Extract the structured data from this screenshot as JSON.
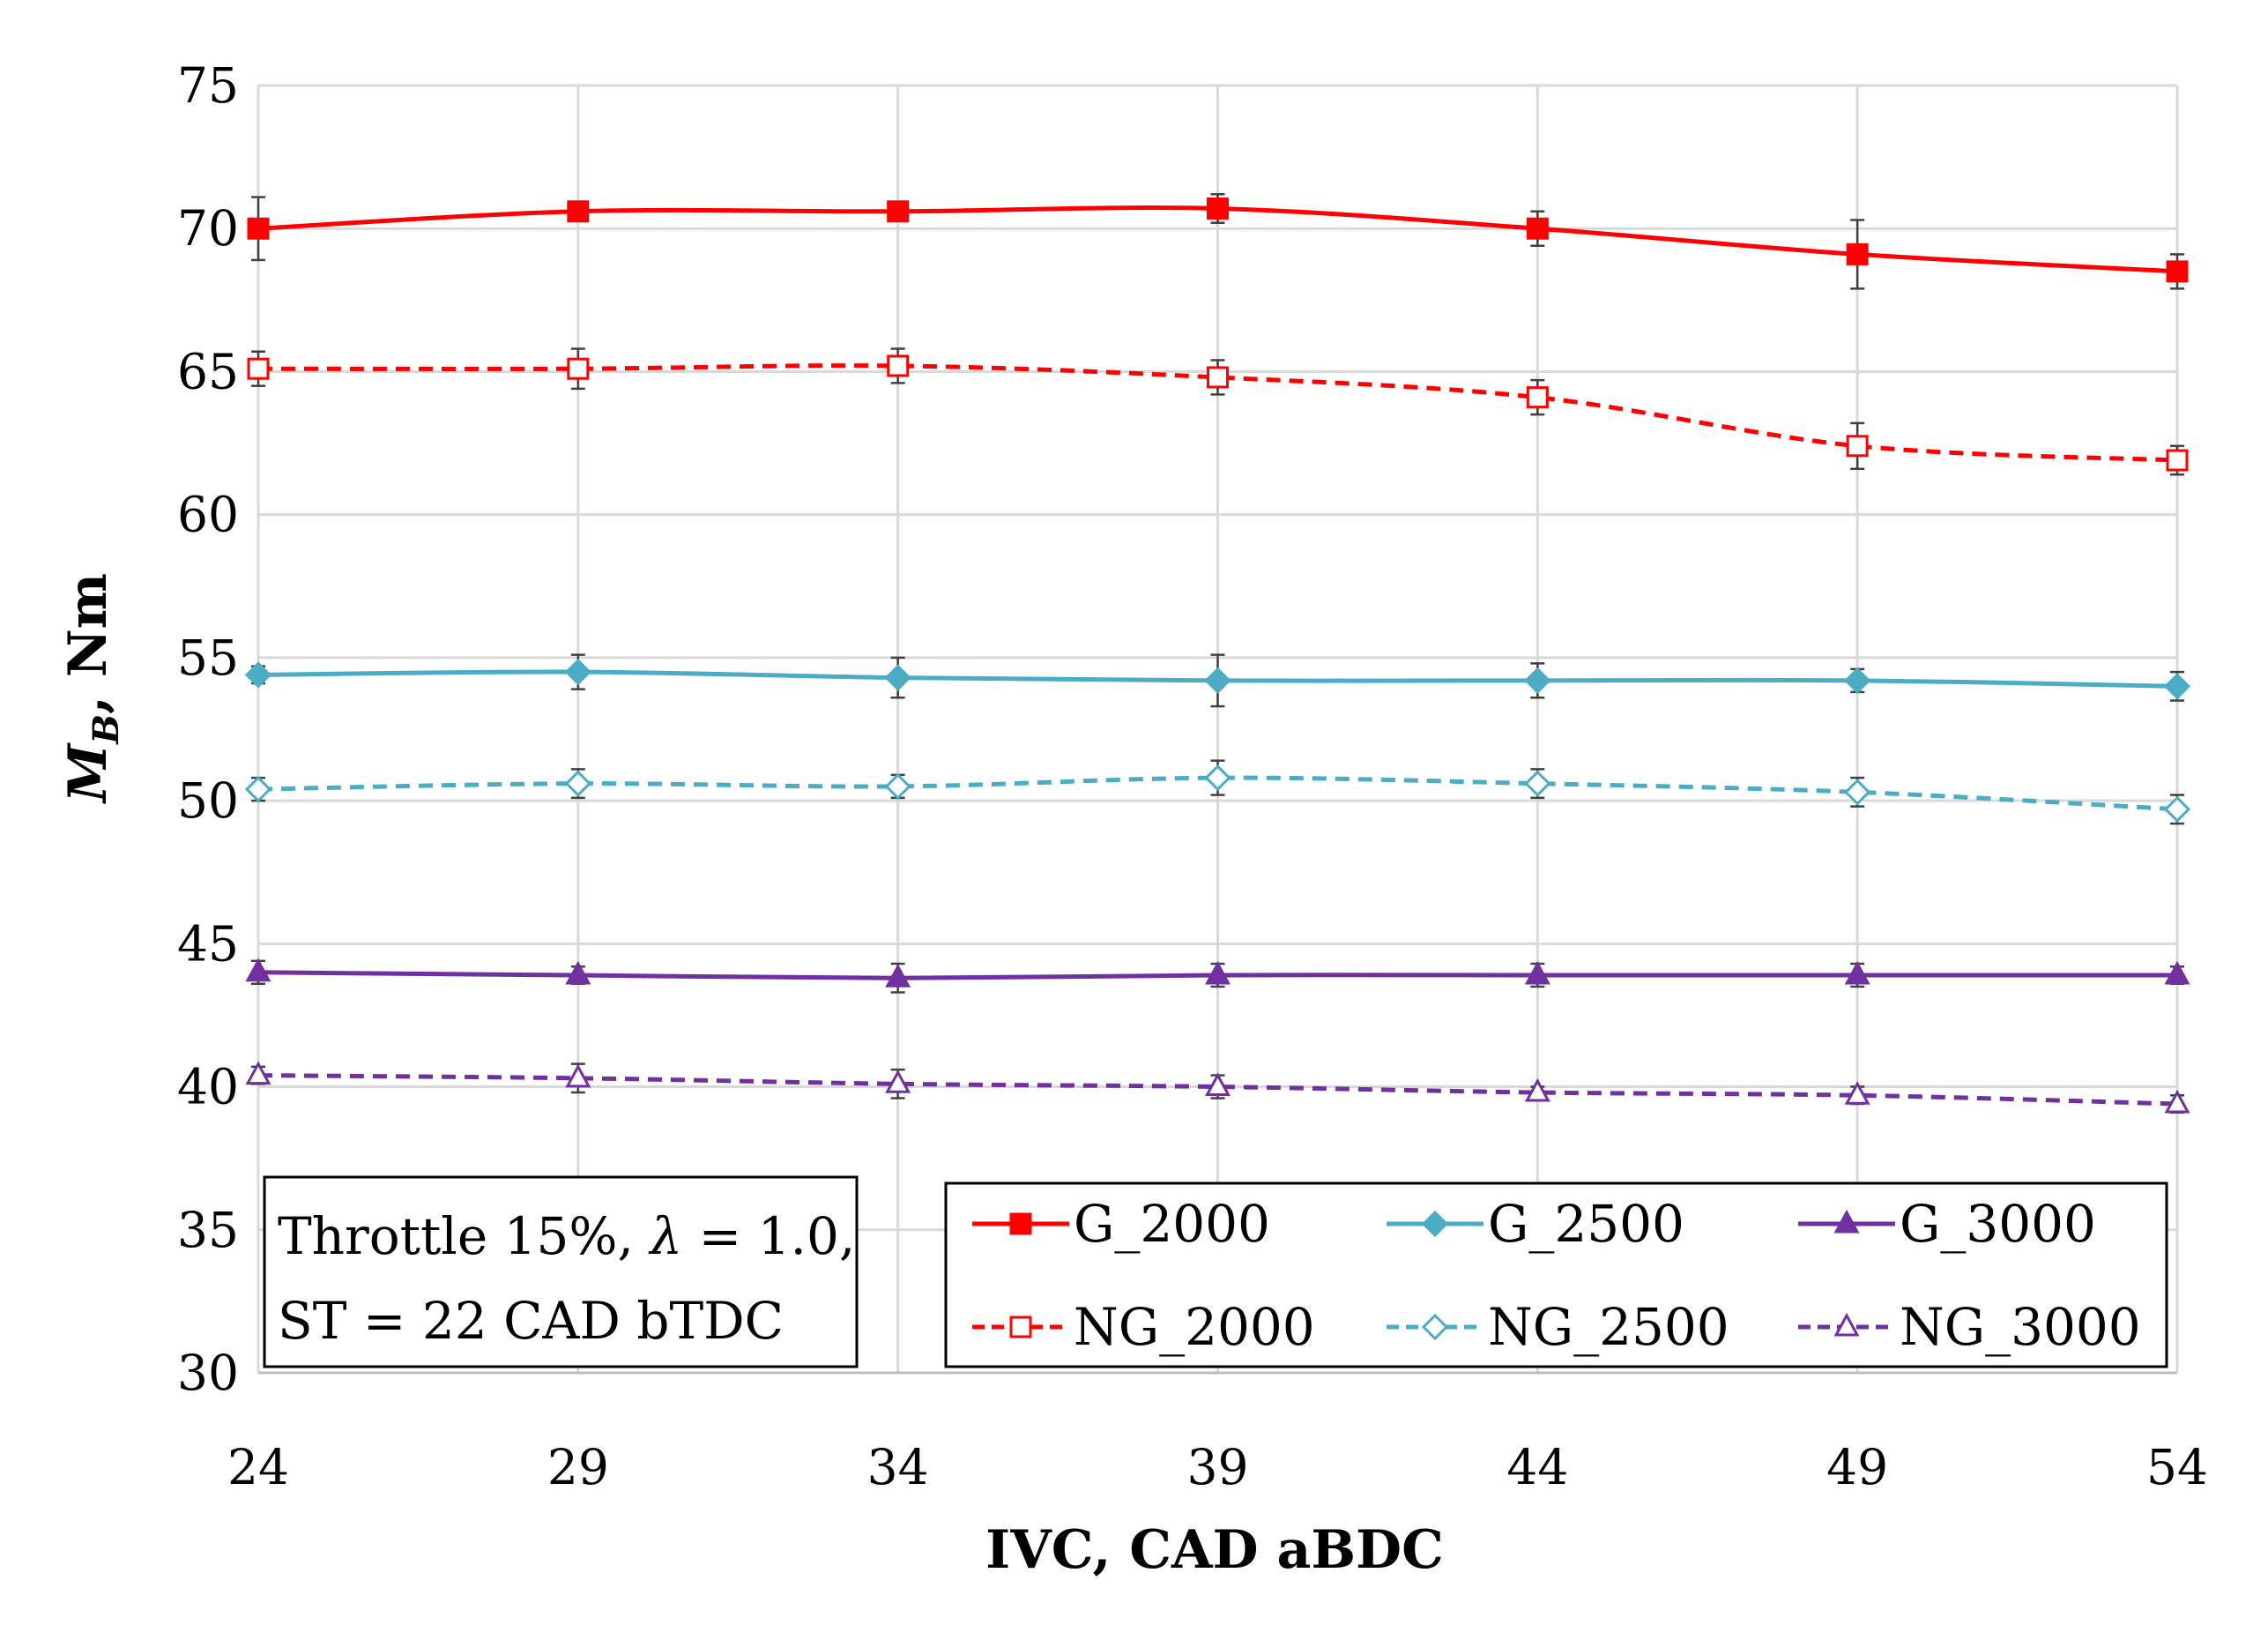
{
  "chart_data": {
    "type": "line",
    "xlabel": "IVC, CAD aBDC",
    "ylabel_main": "M",
    "ylabel_sub": "B",
    "ylabel_rest": ", Nm",
    "x": [
      24,
      29,
      34,
      39,
      44,
      49,
      54
    ],
    "xlim": [
      24,
      54
    ],
    "ylim": [
      30,
      75
    ],
    "yticks": [
      30,
      35,
      40,
      45,
      50,
      55,
      60,
      65,
      70,
      75
    ],
    "xticks": [
      24,
      29,
      34,
      39,
      44,
      49,
      54
    ],
    "grid": true,
    "legend_position": "bottom-right",
    "annotation": {
      "line1_prefix": "Throttle 15%, ",
      "line1_lambda": "λ",
      "line1_suffix": " = 1.0,",
      "line2": "ST = 22 CAD bTDC"
    },
    "series": [
      {
        "name": "G_2000",
        "color": "#ff0000",
        "dashed": false,
        "marker": "square",
        "filled": true,
        "values": [
          70.0,
          70.6,
          70.6,
          70.7,
          70.0,
          69.1,
          68.5
        ],
        "errors": [
          1.1,
          0.3,
          0.3,
          0.5,
          0.6,
          1.2,
          0.6
        ]
      },
      {
        "name": "NG_2000",
        "color": "#ff0000",
        "dashed": true,
        "marker": "square",
        "filled": false,
        "values": [
          65.1,
          65.1,
          65.2,
          64.8,
          64.1,
          62.4,
          61.9
        ],
        "errors": [
          0.6,
          0.7,
          0.6,
          0.6,
          0.6,
          0.8,
          0.5
        ]
      },
      {
        "name": "G_2500",
        "color": "#4bacc6",
        "dashed": false,
        "marker": "diamond",
        "filled": true,
        "values": [
          54.4,
          54.5,
          54.3,
          54.2,
          54.2,
          54.2,
          54.0
        ],
        "errors": [
          0.3,
          0.6,
          0.7,
          0.9,
          0.6,
          0.4,
          0.5
        ]
      },
      {
        "name": "NG_2500",
        "color": "#4bacc6",
        "dashed": true,
        "marker": "diamond",
        "filled": false,
        "values": [
          50.4,
          50.6,
          50.5,
          50.8,
          50.6,
          50.3,
          49.7
        ],
        "errors": [
          0.4,
          0.5,
          0.4,
          0.6,
          0.5,
          0.5,
          0.5
        ]
      },
      {
        "name": "G_3000",
        "color": "#7030a0",
        "dashed": false,
        "marker": "triangle",
        "filled": true,
        "values": [
          44.0,
          43.9,
          43.8,
          43.9,
          43.9,
          43.9,
          43.9
        ],
        "errors": [
          0.4,
          0.3,
          0.5,
          0.4,
          0.4,
          0.4,
          0.3
        ]
      },
      {
        "name": "NG_3000",
        "color": "#7030a0",
        "dashed": true,
        "marker": "triangle",
        "filled": false,
        "values": [
          40.4,
          40.3,
          40.1,
          40.0,
          39.8,
          39.7,
          39.4
        ],
        "errors": [
          0.3,
          0.5,
          0.5,
          0.4,
          0.2,
          0.3,
          0.3
        ]
      }
    ]
  }
}
